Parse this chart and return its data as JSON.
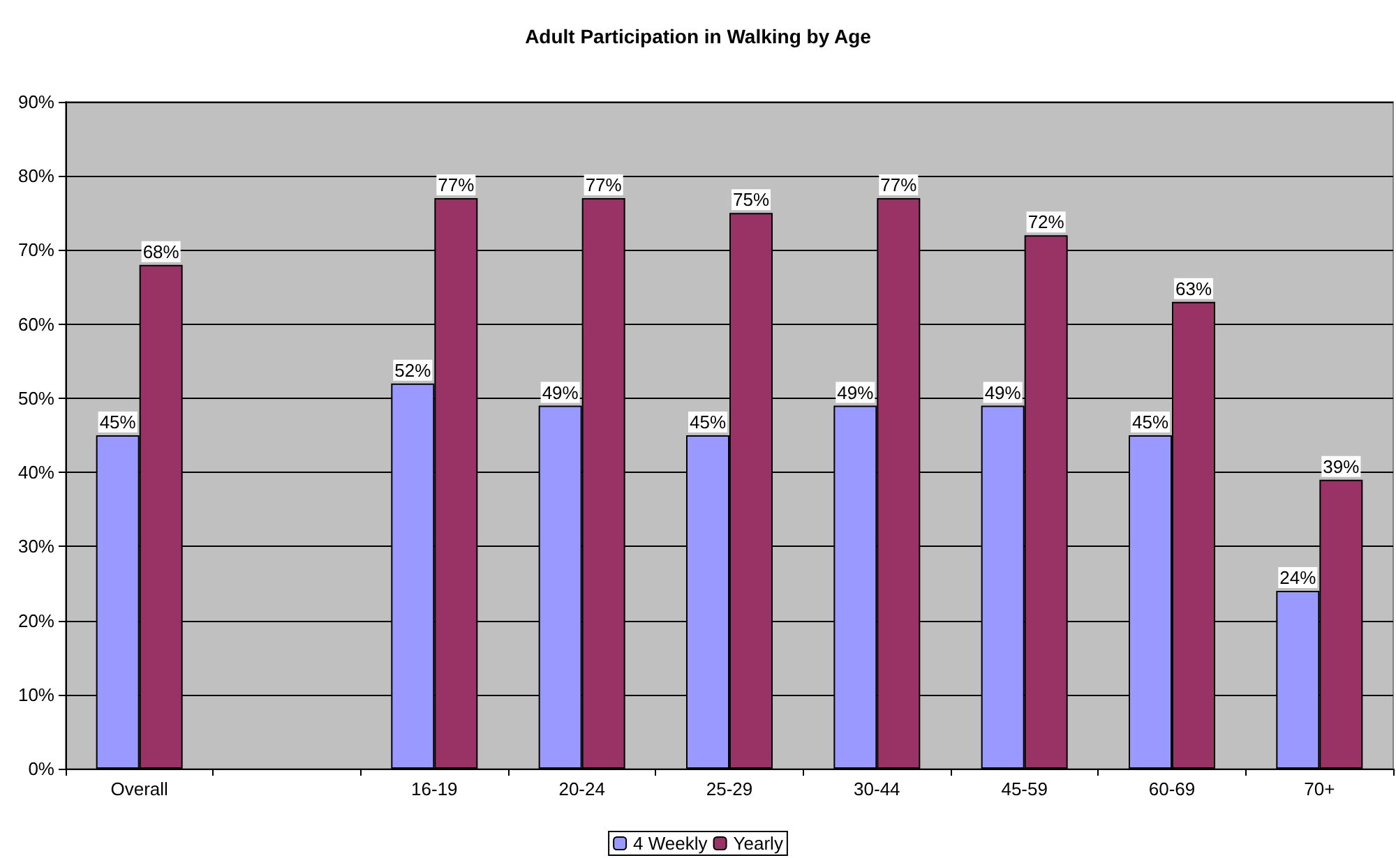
{
  "chart_data": {
    "type": "bar",
    "title": "Adult Participation in Walking by Age",
    "categories": [
      "Overall",
      null,
      "16-19",
      "20-24",
      "25-29",
      "30-44",
      "45-59",
      "60-69",
      "70+"
    ],
    "series": [
      {
        "name": "4 Weekly",
        "color": "#9999ff",
        "values": [
          45,
          null,
          52,
          49,
          45,
          49,
          49,
          45,
          24
        ],
        "value_labels": [
          "45%",
          null,
          "52%",
          "49%",
          "45%",
          "49%",
          "49%",
          "45%",
          "24%"
        ]
      },
      {
        "name": "Yearly",
        "color": "#993366",
        "values": [
          68,
          null,
          77,
          77,
          75,
          77,
          72,
          63,
          39
        ],
        "value_labels": [
          "68%",
          null,
          "77%",
          "77%",
          "75%",
          "77%",
          "72%",
          "63%",
          "39%"
        ]
      }
    ],
    "ylim": [
      0,
      90
    ],
    "yticks": [
      {
        "value": 0,
        "label": "0%"
      },
      {
        "value": 10,
        "label": "10%"
      },
      {
        "value": 20,
        "label": "20%"
      },
      {
        "value": 30,
        "label": "30%"
      },
      {
        "value": 40,
        "label": "40%"
      },
      {
        "value": 50,
        "label": "50%"
      },
      {
        "value": 60,
        "label": "60%"
      },
      {
        "value": 70,
        "label": "70%"
      },
      {
        "value": 80,
        "label": "80%"
      },
      {
        "value": 90,
        "label": "90%"
      }
    ],
    "grid": "y",
    "legend": "bottom"
  }
}
